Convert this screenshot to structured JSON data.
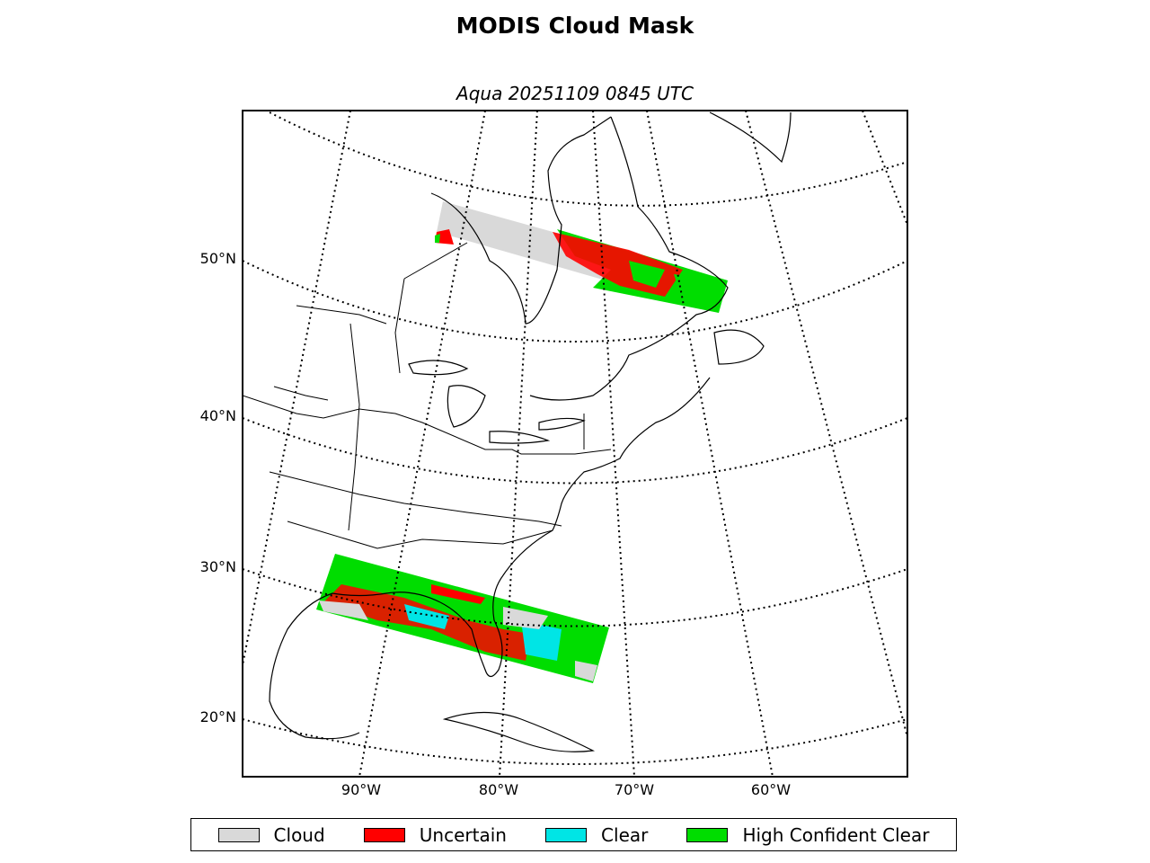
{
  "title": "MODIS Cloud Mask",
  "subtitle": "Aqua 20251109 0845 UTC",
  "latitude_labels": [
    "50°N",
    "40°N",
    "30°N",
    "20°N"
  ],
  "longitude_labels": [
    "90°W",
    "80°W",
    "70°W",
    "60°W"
  ],
  "legend": [
    {
      "label": "Cloud",
      "color": "#d9d9d9"
    },
    {
      "label": "Uncertain",
      "color": "#ff0000"
    },
    {
      "label": "Clear",
      "color": "#00e5e5"
    },
    {
      "label": "High Confident Clear",
      "color": "#00dd00"
    }
  ]
}
